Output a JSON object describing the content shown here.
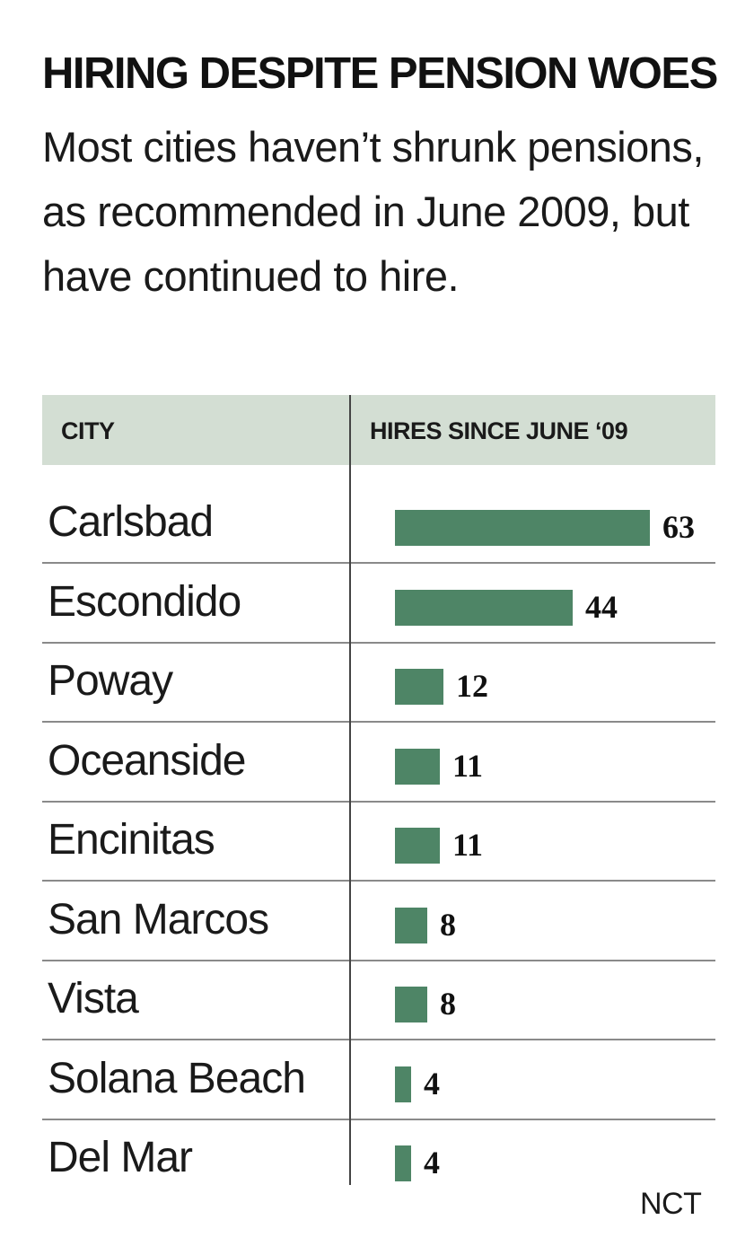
{
  "chart_data": {
    "type": "bar",
    "title": "HIRING DESPITE PENSION WOES",
    "subtitle": "Most cities haven’t shrunk pensions, as recommended in June 2009, but have continued to hire.",
    "column_headers": [
      "CITY",
      "HIRES SINCE JUNE ‘09"
    ],
    "categories": [
      "Carlsbad",
      "Escondido",
      "Poway",
      "Oceanside",
      "Encinitas",
      "San Marcos",
      "Vista",
      "Solana Beach",
      "Del Mar"
    ],
    "values": [
      63,
      44,
      12,
      11,
      11,
      8,
      8,
      4,
      4
    ],
    "orientation": "horizontal",
    "bar_color": "#4e8566",
    "header_color": "#d3ded3",
    "source": "NCT"
  }
}
